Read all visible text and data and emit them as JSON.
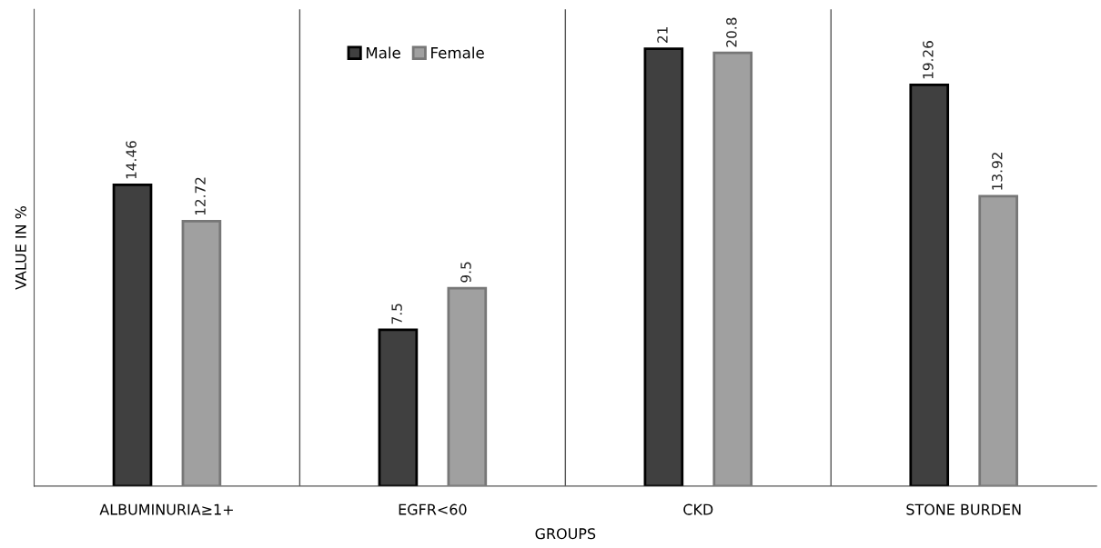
{
  "chart_data": {
    "type": "bar",
    "xlabel": "GROUPS",
    "ylabel": "VALUE IN %",
    "categories": [
      "ALBUMINURIA≥1+",
      "EGFR<60",
      "CKD",
      "STONE BURDEN"
    ],
    "series": [
      {
        "name": "Male",
        "color": "#404040",
        "values": [
          14.46,
          7.5,
          21,
          19.26
        ]
      },
      {
        "name": "Female",
        "color": "#a0a0a0",
        "values": [
          12.72,
          9.5,
          20.8,
          13.92
        ]
      }
    ],
    "data_labels": true,
    "grid": "x",
    "legend": "top",
    "tick_labels": "x"
  }
}
